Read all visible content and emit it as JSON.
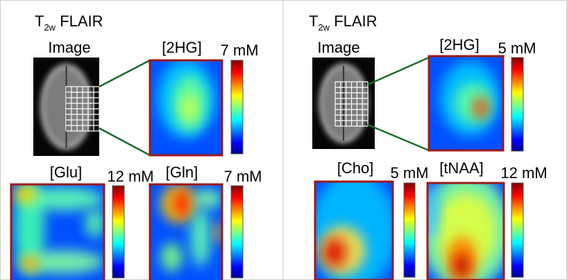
{
  "panels": [
    {
      "title": {
        "prefix": "T",
        "subscript": "2w",
        "suffix": " FLAIR"
      },
      "image_label": "Image",
      "maps": [
        {
          "label": "[2HG]",
          "scale": "7 mM"
        },
        {
          "label": "[Glu]",
          "scale": "12 mM"
        },
        {
          "label": "[Gln]",
          "scale": "7 mM"
        }
      ]
    },
    {
      "title": {
        "prefix": "T",
        "subscript": "2w",
        "suffix": " FLAIR"
      },
      "image_label": "Image",
      "maps": [
        {
          "label": "[2HG]",
          "scale": "5 mM"
        },
        {
          "label": "[Cho]",
          "scale": "5 mM"
        },
        {
          "label": "[tNAA]",
          "scale": "12 mM"
        }
      ]
    }
  ]
}
